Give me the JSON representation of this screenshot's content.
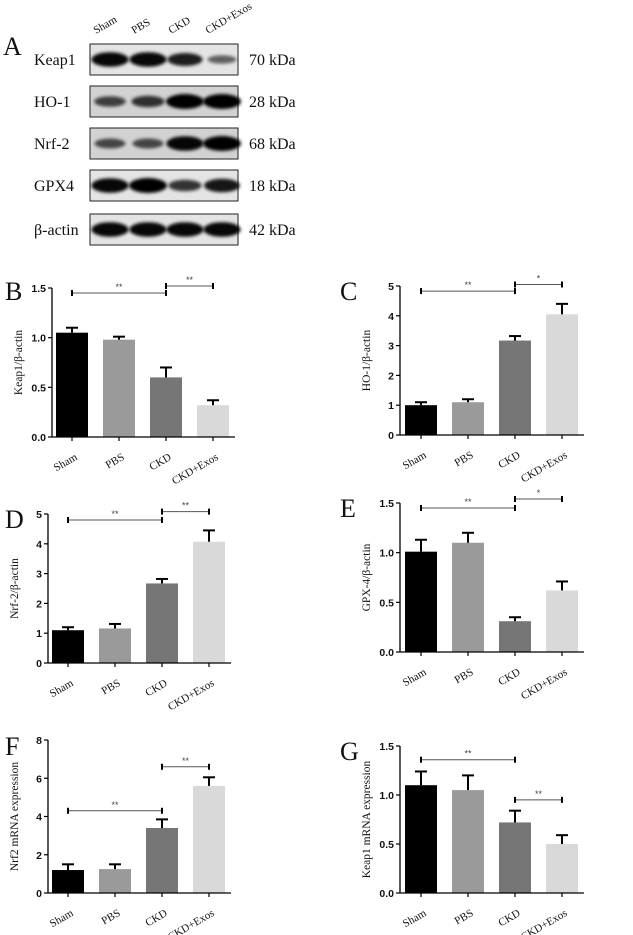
{
  "blot": {
    "letter": "A",
    "lanes": [
      "Sham",
      "PBS",
      "CKD",
      "CKD+Exos"
    ],
    "rows": [
      {
        "protein": "Keap1",
        "size": "70 kDa",
        "band_intensity": [
          0.95,
          0.95,
          0.8,
          0.35
        ]
      },
      {
        "protein": "HO-1",
        "size": "28 kDa",
        "band_intensity": [
          0.55,
          0.65,
          1.0,
          1.0
        ]
      },
      {
        "protein": "Nrf-2",
        "size": "68 kDa",
        "band_intensity": [
          0.5,
          0.5,
          0.95,
          1.0
        ]
      },
      {
        "protein": "GPX4",
        "size": "18 kDa",
        "band_intensity": [
          0.95,
          1.0,
          0.65,
          0.85
        ]
      },
      {
        "protein": "β-actin",
        "size": "42 kDa",
        "band_intensity": [
          0.95,
          0.95,
          0.95,
          0.95
        ]
      }
    ]
  },
  "colors": {
    "Sham": "#000000",
    "PBS": "#9a9a9a",
    "CKD": "#767676",
    "CKD+Exos": "#d9d9d9"
  },
  "chart_data": [
    {
      "letter": "B",
      "type": "bar",
      "categories": [
        "Sham",
        "PBS",
        "CKD",
        "CKD+Exos"
      ],
      "values": [
        1.05,
        0.98,
        0.6,
        0.32
      ],
      "errors": [
        0.05,
        0.03,
        0.1,
        0.05
      ],
      "ylabel": "Keap1/β-actin",
      "ylim": [
        0,
        1.5
      ],
      "yticks": [
        "0.0",
        "0.5",
        "1.0",
        "1.5"
      ],
      "ytick_values": [
        0,
        0.5,
        1,
        1.5
      ],
      "significance": [
        {
          "from": 0,
          "to": 2,
          "y": 1.45,
          "label": "**"
        },
        {
          "from": 2,
          "to": 3,
          "y": 1.52,
          "label": "**"
        }
      ]
    },
    {
      "letter": "C",
      "type": "bar",
      "categories": [
        "Sham",
        "PBS",
        "CKD",
        "CKD+Exos"
      ],
      "values": [
        1.0,
        1.1,
        3.17,
        4.05
      ],
      "errors": [
        0.1,
        0.1,
        0.15,
        0.35
      ],
      "ylabel": "HO-1/β-actin",
      "ylim": [
        0,
        5
      ],
      "yticks": [
        "0",
        "1",
        "2",
        "3",
        "4",
        "5"
      ],
      "ytick_values": [
        0,
        1,
        2,
        3,
        4,
        5
      ],
      "significance": [
        {
          "from": 0,
          "to": 2,
          "y": 4.83,
          "label": "**"
        },
        {
          "from": 2,
          "to": 3,
          "y": 5.05,
          "label": "*"
        }
      ]
    },
    {
      "letter": "D",
      "type": "bar",
      "categories": [
        "Sham",
        "PBS",
        "CKD",
        "CKD+Exos"
      ],
      "values": [
        1.1,
        1.16,
        2.67,
        4.07
      ],
      "errors": [
        0.1,
        0.15,
        0.15,
        0.38
      ],
      "ylabel": "Nrf-2/β-actin",
      "ylim": [
        0,
        5
      ],
      "yticks": [
        "0",
        "1",
        "2",
        "3",
        "4",
        "5"
      ],
      "ytick_values": [
        0,
        1,
        2,
        3,
        4,
        5
      ],
      "significance": [
        {
          "from": 0,
          "to": 2,
          "y": 4.8,
          "label": "**"
        },
        {
          "from": 2,
          "to": 3,
          "y": 5.08,
          "label": "**"
        }
      ]
    },
    {
      "letter": "E",
      "type": "bar",
      "categories": [
        "Sham",
        "PBS",
        "CKD",
        "CKD+Exos"
      ],
      "values": [
        1.01,
        1.1,
        0.31,
        0.62
      ],
      "errors": [
        0.12,
        0.1,
        0.04,
        0.09
      ],
      "ylabel": "GPX-4/β-actin",
      "ylim": [
        0,
        1.5
      ],
      "yticks": [
        "0.0",
        "0.5",
        "1.0",
        "1.5"
      ],
      "ytick_values": [
        0,
        0.5,
        1,
        1.5
      ],
      "significance": [
        {
          "from": 0,
          "to": 2,
          "y": 1.45,
          "label": "**"
        },
        {
          "from": 2,
          "to": 3,
          "y": 1.54,
          "label": "*"
        }
      ]
    },
    {
      "letter": "F",
      "type": "bar",
      "categories": [
        "Sham",
        "PBS",
        "CKD",
        "CKD+Exos"
      ],
      "values": [
        1.2,
        1.25,
        3.4,
        5.6
      ],
      "errors": [
        0.3,
        0.25,
        0.45,
        0.45
      ],
      "ylabel": "Nrf2 mRNA expression",
      "ylim": [
        0,
        8
      ],
      "yticks": [
        "0",
        "2",
        "4",
        "6",
        "8"
      ],
      "ytick_values": [
        0,
        2,
        4,
        6,
        8
      ],
      "significance": [
        {
          "from": 0,
          "to": 2,
          "y": 4.3,
          "label": "**"
        },
        {
          "from": 2,
          "to": 3,
          "y": 6.6,
          "label": "**"
        }
      ]
    },
    {
      "letter": "G",
      "type": "bar",
      "categories": [
        "Sham",
        "PBS",
        "CKD",
        "CKD+Exos"
      ],
      "values": [
        1.1,
        1.05,
        0.72,
        0.5
      ],
      "errors": [
        0.14,
        0.15,
        0.12,
        0.09
      ],
      "ylabel": "Keap1 mRNA expression",
      "ylim": [
        0,
        1.5
      ],
      "yticks": [
        "0.0",
        "0.5",
        "1.0",
        "1.5"
      ],
      "ytick_values": [
        0,
        0.5,
        1,
        1.5
      ],
      "significance": [
        {
          "from": 0,
          "to": 2,
          "y": 1.36,
          "label": "**"
        },
        {
          "from": 2,
          "to": 3,
          "y": 0.95,
          "label": "**"
        }
      ]
    }
  ]
}
